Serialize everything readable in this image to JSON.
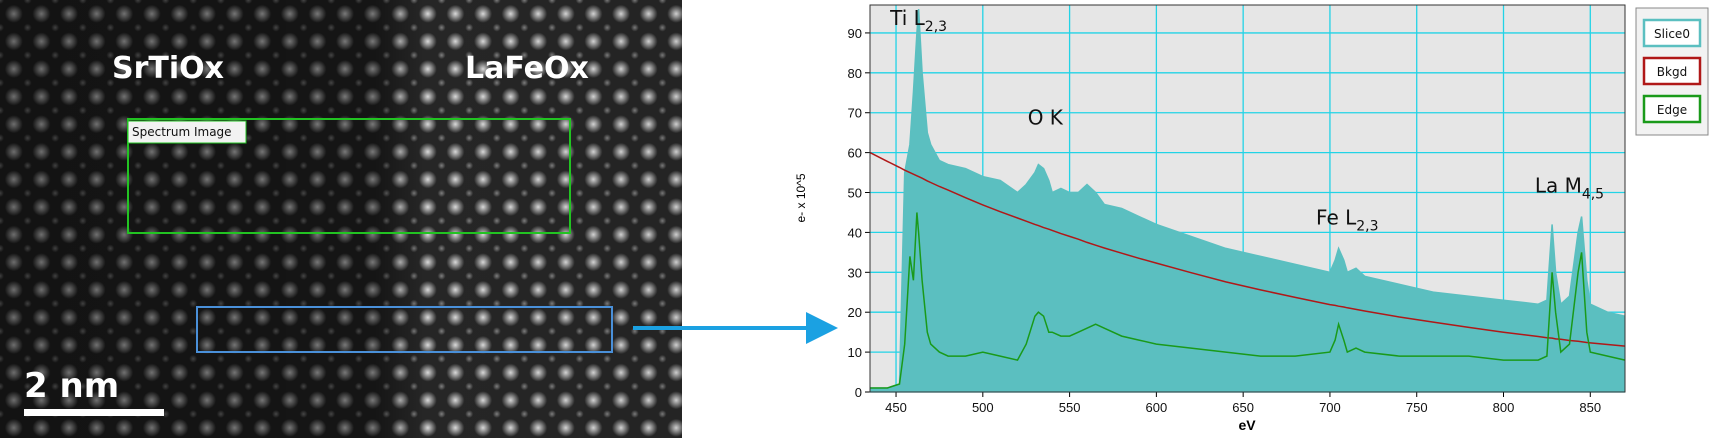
{
  "image": {
    "labels": [
      "SrTiOx",
      "LaFeOx"
    ],
    "box_label": "Spectrum Image",
    "scale_bar": "2 nm"
  },
  "chart_data": {
    "type": "area",
    "x_label": "eV",
    "y_label": "e- x 10^5",
    "annotations": [
      {
        "text": "Ti L",
        "sub": "2,3"
      },
      {
        "text": "O K"
      },
      {
        "text": "Fe L",
        "sub": "2,3"
      },
      {
        "text": "La M",
        "sub": "4,5"
      }
    ],
    "xlim": [
      435,
      870
    ],
    "xticks": [
      450,
      500,
      550,
      600,
      650,
      700,
      750,
      800,
      850
    ],
    "ylim": [
      0,
      97
    ],
    "yticks": [
      0,
      10,
      20,
      30,
      40,
      50,
      60,
      70,
      80,
      90
    ],
    "grid": true,
    "legend": "right",
    "x": [
      435,
      445,
      452,
      455,
      458,
      460,
      462,
      463,
      465,
      468,
      470,
      475,
      480,
      490,
      500,
      510,
      520,
      525,
      530,
      532,
      535,
      538,
      540,
      545,
      550,
      555,
      560,
      565,
      570,
      580,
      590,
      600,
      620,
      640,
      660,
      680,
      700,
      703,
      705,
      708,
      710,
      715,
      720,
      740,
      760,
      780,
      800,
      820,
      825,
      828,
      830,
      833,
      838,
      843,
      845,
      848,
      850,
      860,
      870
    ],
    "series": [
      {
        "name": "Slice0",
        "color": "#5bbfc0",
        "values": [
          1,
          1,
          2,
          55,
          62,
          75,
          90,
          96,
          80,
          65,
          62,
          58,
          57,
          56,
          54,
          53,
          50,
          52,
          55,
          57,
          56,
          53,
          50,
          51,
          50,
          50,
          52,
          50,
          47,
          46,
          44,
          42,
          39,
          36,
          34,
          32,
          30,
          33,
          36,
          33,
          30,
          31,
          29,
          27,
          25,
          24,
          23,
          22,
          23,
          42,
          30,
          22,
          24,
          40,
          44,
          28,
          22,
          20,
          19
        ]
      },
      {
        "name": "Bkgd",
        "color": "#b01818",
        "values": [
          60,
          57.8,
          56.3,
          55.6,
          55.0,
          54.6,
          54.2,
          54.0,
          53.6,
          52.9,
          52.5,
          51.5,
          50.6,
          48.7,
          46.9,
          45.2,
          43.6,
          42.8,
          42.0,
          41.7,
          41.2,
          40.8,
          40.5,
          39.7,
          39.0,
          38.3,
          37.5,
          36.8,
          36.1,
          34.8,
          33.5,
          32.3,
          29.9,
          27.6,
          25.6,
          23.7,
          21.9,
          21.7,
          21.5,
          21.3,
          21.1,
          20.7,
          20.3,
          18.8,
          17.5,
          16.2,
          15.0,
          13.9,
          13.6,
          13.5,
          13.3,
          13.2,
          12.9,
          12.7,
          12.6,
          12.4,
          12.3,
          11.9,
          11.5
        ]
      },
      {
        "name": "Edge",
        "color": "#1a9a1a",
        "values": [
          1,
          1,
          2,
          12,
          34,
          28,
          45,
          40,
          28,
          15,
          12,
          10,
          9,
          9,
          10,
          9,
          8,
          12,
          19,
          20,
          19,
          15,
          15,
          14,
          14,
          15,
          16,
          17,
          16,
          14,
          13,
          12,
          11,
          10,
          9,
          9,
          10,
          13,
          17,
          13,
          10,
          11,
          10,
          9,
          9,
          9,
          8,
          8,
          9,
          30,
          20,
          10,
          12,
          30,
          35,
          15,
          10,
          9,
          8
        ]
      }
    ]
  }
}
